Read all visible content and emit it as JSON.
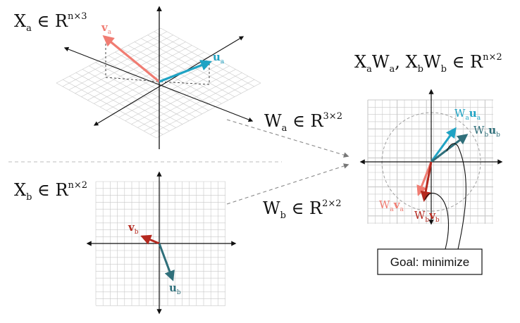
{
  "colors": {
    "vector_a": "#f07c72",
    "vector_ua": "#1fa3c4",
    "vector_vb": "#b5291f",
    "vector_ub": "#2f6f7a",
    "grid": "#c8c8c8",
    "axis": "#111111",
    "connector": "#8a8a8a"
  },
  "top_left": {
    "label_main": "X",
    "label_sub": "a",
    "label_rest": " ∈ R",
    "label_sup": "n×3",
    "vec_v_main": "v",
    "vec_v_sub": "a",
    "vec_u_main": "u",
    "vec_u_sub": "a"
  },
  "bottom_left": {
    "label_main": "X",
    "label_sub": "b",
    "label_rest": " ∈ R",
    "label_sup": "n×2",
    "vec_v_main": "v",
    "vec_v_sub": "b",
    "vec_u_main": "u",
    "vec_u_sub": "b"
  },
  "transforms": {
    "wa_main": "W",
    "wa_sub": "a",
    "wa_rest": " ∈ R",
    "wa_sup": "3×2",
    "wb_main": "W",
    "wb_sub": "b",
    "wb_rest": " ∈ R",
    "wb_sup": "2×2"
  },
  "right": {
    "title_x1": "X",
    "title_sub_a1": "a",
    "title_w1": "W",
    "title_sub_a2": "a",
    "title_sep": ", ",
    "title_x2": "X",
    "title_sub_b1": "b",
    "title_w2": "W",
    "title_sub_b2": "b",
    "title_rest": " ∈ R",
    "title_sup": "n×2",
    "label_wa_ua": {
      "w": "W",
      "ws": "a",
      "v": "u",
      "vs": "a"
    },
    "label_wb_ub": {
      "w": "W",
      "ws": "b",
      "v": "u",
      "vs": "b"
    },
    "label_wa_va": {
      "w": "W",
      "ws": "a",
      "v": "v",
      "vs": "a"
    },
    "label_wb_vb": {
      "w": "W",
      "ws": "b",
      "v": "v",
      "vs": "b"
    }
  },
  "goal_box": {
    "label": "Goal: minimize"
  }
}
